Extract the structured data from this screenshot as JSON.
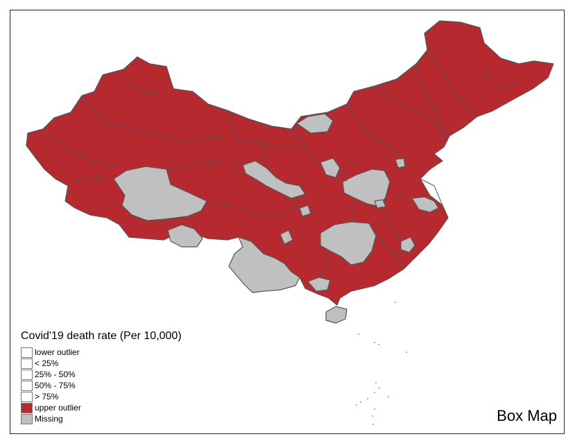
{
  "map": {
    "title": "Box Map",
    "colors": {
      "upper_outlier": "#B5292F",
      "missing": "#C0C0C0",
      "border": "#555555",
      "empty": "#ffffff"
    }
  },
  "legend": {
    "title": "Covid'19 death rate (Per 10,000)",
    "items": [
      {
        "label": "lower outlier",
        "color": "#ffffff"
      },
      {
        "label": "< 25%",
        "color": "#ffffff"
      },
      {
        "label": "25% - 50%",
        "color": "#ffffff"
      },
      {
        "label": "50% - 75%",
        "color": "#ffffff"
      },
      {
        "label": "> 75%",
        "color": "#ffffff"
      },
      {
        "label": "upper outlier",
        "color": "#B5292F"
      },
      {
        "label": "Missing",
        "color": "#C0C0C0"
      }
    ]
  }
}
